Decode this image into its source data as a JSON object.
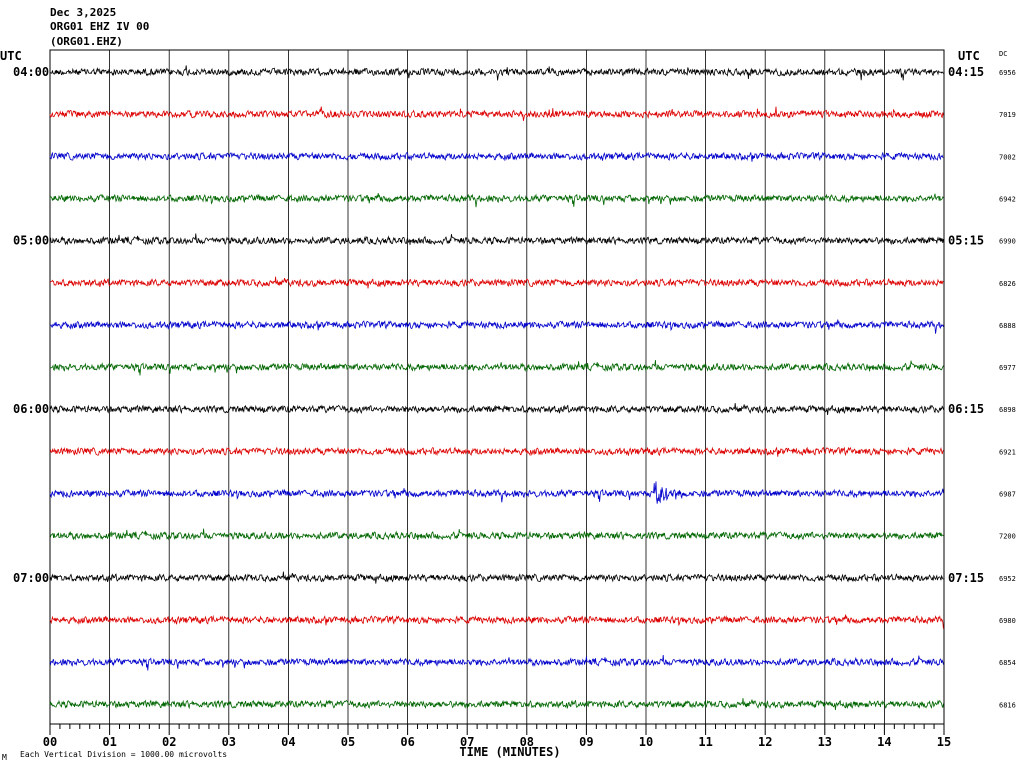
{
  "header": {
    "date": "Dec 3,2025",
    "station": "ORG01 EHZ IV 00",
    "channel": "(ORG01.EHZ)"
  },
  "chart_data": {
    "type": "line",
    "left_axis_label": "UTC",
    "right_axis_label": "UTC",
    "dc_label": "DC",
    "xlabel": "TIME (MINUTES)",
    "x_ticks": [
      "00",
      "01",
      "02",
      "03",
      "04",
      "05",
      "06",
      "07",
      "08",
      "09",
      "10",
      "11",
      "12",
      "13",
      "14",
      "15"
    ],
    "xlim": [
      0,
      15
    ],
    "row_colors": [
      "#000000",
      "#dd0000",
      "#0000cc",
      "#006600"
    ],
    "left_times": [
      "04:00",
      "05:00",
      "06:00",
      "07:00"
    ],
    "right_times": [
      "04:15",
      "05:15",
      "06:15",
      "07:15"
    ],
    "dc_values": [
      "6956",
      "7019",
      "7002",
      "6942",
      "6990",
      "6826",
      "6888",
      "6977",
      "6898",
      "6921",
      "6987",
      "7200",
      "6952",
      "6980",
      "6854",
      "6816"
    ],
    "footer_mark": "M",
    "footnote": "Each Vertical Division = 1000.00 microvolts"
  }
}
